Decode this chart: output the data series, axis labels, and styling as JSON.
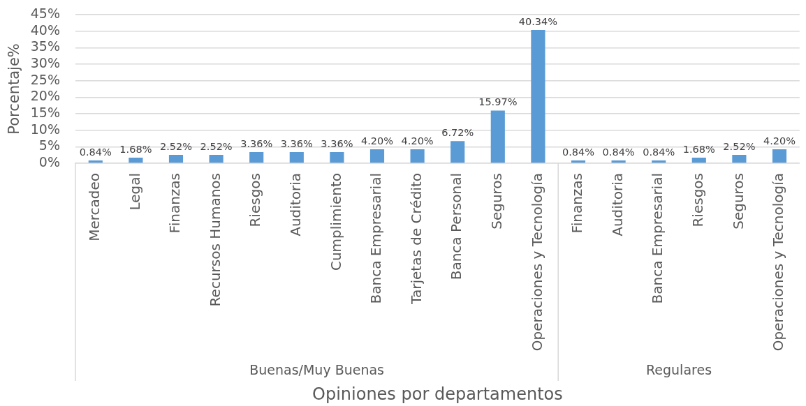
{
  "chart_data": {
    "type": "bar",
    "xlabel": "Opiniones por departamentos",
    "ylabel": "Porcentaje%",
    "categories": [
      "Mercadeo",
      "Legal",
      "Finanzas",
      "Recursos Humanos",
      "Riesgos",
      "Auditoria",
      "Cumplimiento",
      "Banca Empresarial",
      "Tarjetas de Crédito",
      "Banca Personal",
      "Seguros",
      "Operaciones y Tecnología",
      "Finanzas",
      "Auditoria",
      "Banca Empresarial",
      "Riesgos",
      "Seguros",
      "Operaciones y Tecnología"
    ],
    "series": [
      {
        "color": "#5b9bd5",
        "values": [
          0.84,
          1.68,
          2.52,
          2.52,
          3.36,
          3.36,
          3.36,
          4.2,
          4.2,
          6.72,
          15.97,
          40.34,
          null,
          null,
          null,
          null,
          null,
          null
        ],
        "value_labels": [
          "0.84%",
          "1.68%",
          "2.52%",
          "2.52%",
          "3.36%",
          "3.36%",
          "3.36%",
          "4.20%",
          "4.20%",
          "6.72%",
          "15.97%",
          "40.34%",
          null,
          null,
          null,
          null,
          null,
          null
        ]
      },
      {
        "color": "#5b9bd5",
        "values": [
          null,
          null,
          null,
          null,
          null,
          null,
          null,
          null,
          null,
          null,
          null,
          null,
          0.84,
          0.84,
          0.84,
          1.68,
          2.52,
          4.2
        ],
        "value_labels": [
          null,
          null,
          null,
          null,
          null,
          null,
          null,
          null,
          null,
          null,
          null,
          null,
          "0.84%",
          "0.84%",
          "0.84%",
          "1.68%",
          "2.52%",
          "4.20%"
        ]
      }
    ],
    "annotations": [
      "Buenas/Muy Buenas",
      "Regulares"
    ],
    "ylim": [
      0,
      45
    ],
    "yticks": [
      {
        "value": 0,
        "label": "0%"
      },
      {
        "value": 5,
        "label": "5%"
      },
      {
        "value": 10,
        "label": "10%"
      },
      {
        "value": 15,
        "label": "15%"
      },
      {
        "value": 20,
        "label": "20%"
      },
      {
        "value": 25,
        "label": "25%"
      },
      {
        "value": 30,
        "label": "30%"
      },
      {
        "value": 35,
        "label": "35%"
      },
      {
        "value": 40,
        "label": "40%"
      },
      {
        "value": 45,
        "label": "45%"
      }
    ],
    "grid": "y"
  }
}
